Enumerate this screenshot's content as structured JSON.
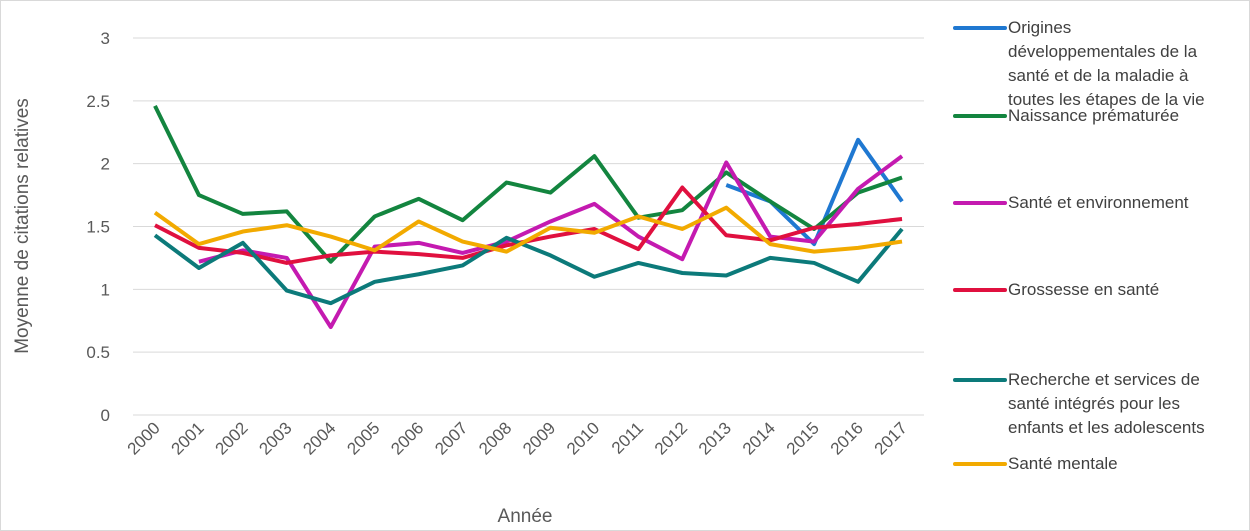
{
  "chart_data": {
    "type": "line",
    "x_label": "Année",
    "y_label": "Moyenne de citations relatives",
    "categories": [
      "2000",
      "2001",
      "2002",
      "2003",
      "2004",
      "2005",
      "2006",
      "2007",
      "2008",
      "2009",
      "2010",
      "2011",
      "2012",
      "2013",
      "2014",
      "2015",
      "2016",
      "2017"
    ],
    "ylim": [
      0,
      3
    ],
    "yticks": [
      0,
      0.5,
      1,
      1.5,
      2,
      2.5,
      3
    ],
    "grid": true,
    "legend": "right",
    "series": [
      {
        "name": "Origines développementales de la santé et de la maladie à toutes les étapes de la vie",
        "color": "#1f78d1",
        "values": [
          null,
          null,
          null,
          null,
          null,
          null,
          null,
          null,
          null,
          null,
          null,
          null,
          null,
          1.83,
          1.7,
          1.36,
          2.19,
          1.7
        ]
      },
      {
        "name": "Naissance prématurée",
        "color": "#13853f",
        "values": [
          2.46,
          1.75,
          1.6,
          1.62,
          1.22,
          1.58,
          1.72,
          1.55,
          1.85,
          1.77,
          2.06,
          1.57,
          1.63,
          1.93,
          1.7,
          1.48,
          1.77,
          1.89
        ]
      },
      {
        "name": "Santé et environnement",
        "color": "#c41ab0",
        "values": [
          null,
          1.22,
          1.31,
          1.25,
          0.7,
          1.34,
          1.37,
          1.29,
          1.38,
          1.54,
          1.68,
          1.42,
          1.24,
          2.01,
          1.42,
          1.38,
          1.8,
          2.06
        ]
      },
      {
        "name": "Grossesse en santé",
        "color": "#e0103f",
        "values": [
          1.51,
          1.33,
          1.29,
          1.21,
          1.27,
          1.3,
          1.28,
          1.25,
          1.35,
          1.42,
          1.48,
          1.32,
          1.81,
          1.43,
          1.39,
          1.49,
          1.52,
          1.56
        ]
      },
      {
        "name": "Recherche et services de santé intégrés pour les enfants et les adolescents",
        "color": "#0c7a7a",
        "values": [
          1.43,
          1.17,
          1.37,
          0.99,
          0.89,
          1.06,
          1.12,
          1.19,
          1.41,
          1.27,
          1.1,
          1.21,
          1.13,
          1.11,
          1.25,
          1.21,
          1.06,
          1.48
        ]
      },
      {
        "name": "Santé mentale",
        "color": "#f2aa00",
        "values": [
          1.61,
          1.36,
          1.46,
          1.51,
          1.42,
          1.31,
          1.54,
          1.38,
          1.3,
          1.49,
          1.45,
          1.58,
          1.48,
          1.65,
          1.36,
          1.3,
          1.33,
          1.38
        ]
      }
    ]
  }
}
